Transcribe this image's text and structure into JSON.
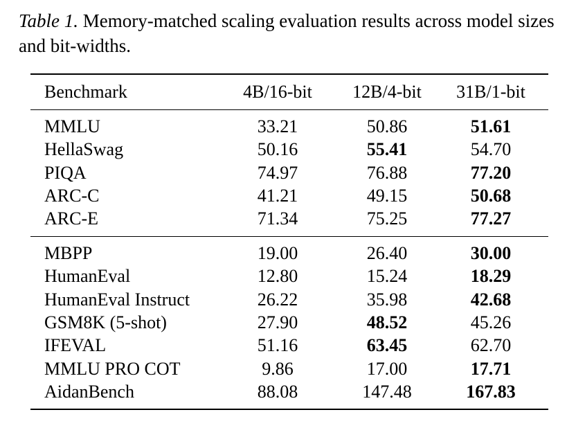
{
  "caption": {
    "label": "Table 1.",
    "text": "Memory-matched scaling evaluation results across model sizes and bit-widths."
  },
  "table": {
    "headers": [
      "Benchmark",
      "4B/16-bit",
      "12B/4-bit",
      "31B/1-bit"
    ],
    "groups": [
      {
        "rows": [
          {
            "benchmark": "MMLU",
            "values": [
              "33.21",
              "50.86",
              "51.61"
            ],
            "best": 2
          },
          {
            "benchmark": "HellaSwag",
            "values": [
              "50.16",
              "55.41",
              "54.70"
            ],
            "best": 1
          },
          {
            "benchmark": "PIQA",
            "values": [
              "74.97",
              "76.88",
              "77.20"
            ],
            "best": 2
          },
          {
            "benchmark": "ARC-C",
            "values": [
              "41.21",
              "49.15",
              "50.68"
            ],
            "best": 2
          },
          {
            "benchmark": "ARC-E",
            "values": [
              "71.34",
              "75.25",
              "77.27"
            ],
            "best": 2
          }
        ]
      },
      {
        "rows": [
          {
            "benchmark": "MBPP",
            "values": [
              "19.00",
              "26.40",
              "30.00"
            ],
            "best": 2
          },
          {
            "benchmark": "HumanEval",
            "values": [
              "12.80",
              "15.24",
              "18.29"
            ],
            "best": 2
          },
          {
            "benchmark": "HumanEval Instruct",
            "values": [
              "26.22",
              "35.98",
              "42.68"
            ],
            "best": 2
          },
          {
            "benchmark": "GSM8K (5-shot)",
            "values": [
              "27.90",
              "48.52",
              "45.26"
            ],
            "best": 1
          },
          {
            "benchmark": "IFEVAL",
            "values": [
              "51.16",
              "63.45",
              "62.70"
            ],
            "best": 1
          },
          {
            "benchmark": "MMLU PRO COT",
            "values": [
              "9.86",
              "17.00",
              "17.71"
            ],
            "best": 2
          },
          {
            "benchmark": "AidanBench",
            "values": [
              "88.08",
              "147.48",
              "167.83"
            ],
            "best": 2
          }
        ]
      }
    ]
  }
}
